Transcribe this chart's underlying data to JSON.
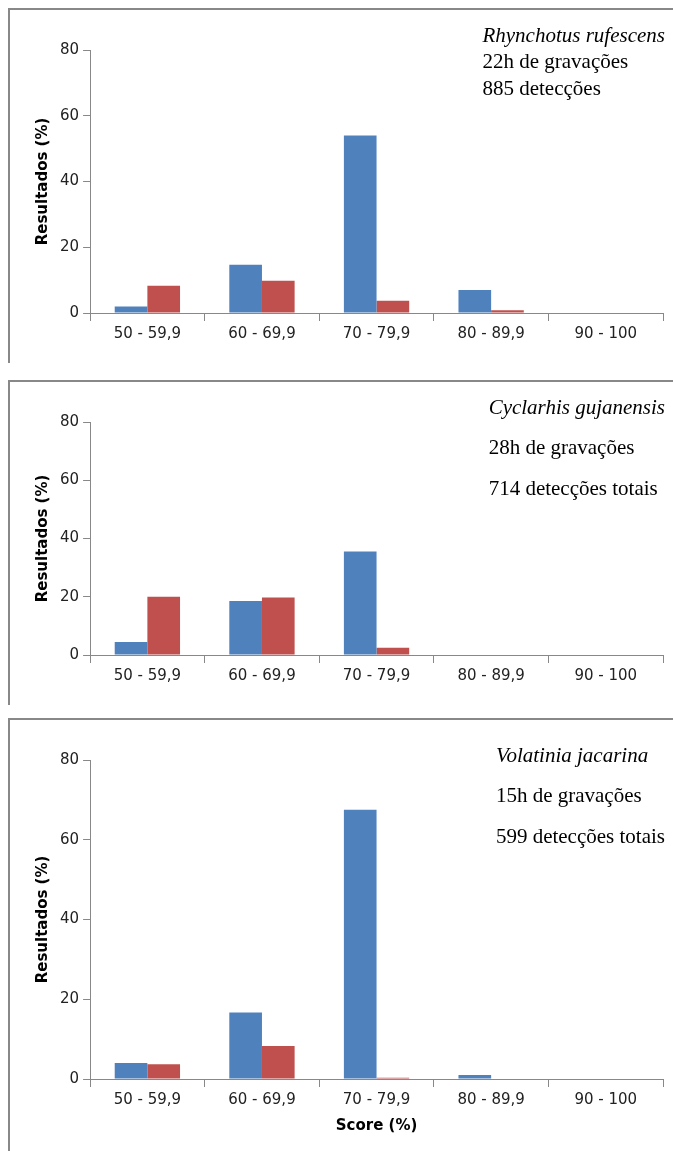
{
  "chart_data": [
    {
      "type": "bar",
      "ylabel": "Resultados (%)",
      "categories": [
        "50 - 59,9",
        "60 - 69,9",
        "70 - 79,9",
        "80 - 89,9",
        "90 - 100"
      ],
      "series": [
        {
          "color": "#4f81bd",
          "values": [
            2,
            14.7,
            54,
            7,
            0
          ]
        },
        {
          "color": "#c0504d",
          "values": [
            8.3,
            9.8,
            3.7,
            0.8,
            0
          ]
        }
      ],
      "ylim": [
        0,
        80
      ],
      "yticks": [
        0,
        20,
        40,
        60,
        80
      ],
      "grid": false,
      "legend": false,
      "annotations": [
        "Rhynchotus rufescens",
        "22h de gravações",
        "885 detecções"
      ]
    },
    {
      "type": "bar",
      "ylabel": "Resultados (%)",
      "categories": [
        "50 - 59,9",
        "60 - 69,9",
        "70 - 79,9",
        "80 - 89,9",
        "90 - 100"
      ],
      "series": [
        {
          "color": "#4f81bd",
          "values": [
            4.5,
            18.5,
            35.5,
            0,
            0
          ]
        },
        {
          "color": "#c0504d",
          "values": [
            20,
            19.7,
            2.5,
            0,
            0
          ]
        }
      ],
      "ylim": [
        0,
        80
      ],
      "yticks": [
        0,
        20,
        40,
        60,
        80
      ],
      "grid": false,
      "legend": false,
      "annotations": [
        "Cyclarhis gujanensis",
        "28h de gravações",
        "714 detecções totais"
      ]
    },
    {
      "type": "bar",
      "xlabel": "Score (%)",
      "ylabel": "Resultados (%)",
      "categories": [
        "50 - 59,9",
        "60 - 69,9",
        "70 - 79,9",
        "80 - 89,9",
        "90 - 100"
      ],
      "series": [
        {
          "color": "#4f81bd",
          "values": [
            4,
            16.7,
            67.5,
            1,
            0
          ]
        },
        {
          "color": "#c0504d",
          "values": [
            3.7,
            8.3,
            0.3,
            0,
            0
          ]
        }
      ],
      "ylim": [
        0,
        80
      ],
      "yticks": [
        0,
        20,
        40,
        60,
        80
      ],
      "grid": false,
      "legend": false,
      "annotations": [
        "Volatinia jacarina",
        "15h de gravações",
        "599 detecções totais"
      ]
    }
  ]
}
